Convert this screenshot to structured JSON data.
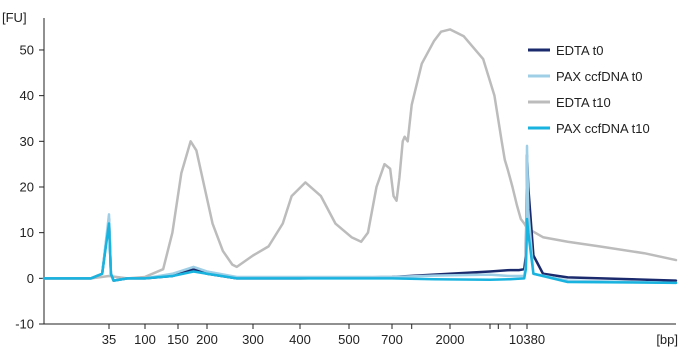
{
  "chart_data": {
    "type": "line",
    "y_unit_label": "[FU]",
    "x_unit_label": "[bp]",
    "ylim": [
      -10,
      57
    ],
    "y_ticks": [
      -10,
      0,
      10,
      20,
      30,
      40,
      50
    ],
    "x_tick_labels": [
      "35",
      "100",
      "150",
      "200",
      "300",
      "400",
      "500",
      "700",
      "2000",
      "10380"
    ],
    "x_tick_label_anchors": [
      {
        "label": "35",
        "bp": 35
      },
      {
        "label": "100",
        "bp": 100
      },
      {
        "label": "150",
        "bp": 150
      },
      {
        "label": "200",
        "bp": 200
      },
      {
        "label": "300",
        "bp": 300
      },
      {
        "label": "400",
        "bp": 400
      },
      {
        "label": "500",
        "bp": 500
      },
      {
        "label": "700",
        "bp": 700
      },
      {
        "label": "2000",
        "bp": 2000
      },
      {
        "label": "10380",
        "bp": 10380
      }
    ],
    "minor_tick_bp": [
      35,
      100,
      150,
      200,
      300,
      400,
      500,
      700,
      1000,
      2000,
      3000,
      4000,
      6000,
      10380
    ],
    "grid": false,
    "legend_position": "top-right",
    "series": [
      {
        "name": "EDTA t0",
        "color": "#1a2a6c",
        "stroke_width": 2.5,
        "points": [
          [
            20,
            0
          ],
          [
            30,
            0
          ],
          [
            33,
            1
          ],
          [
            35,
            13
          ],
          [
            37,
            1
          ],
          [
            40,
            -0.5
          ],
          [
            60,
            0
          ],
          [
            100,
            0
          ],
          [
            140,
            0.5
          ],
          [
            175,
            2
          ],
          [
            200,
            1
          ],
          [
            260,
            0
          ],
          [
            400,
            0
          ],
          [
            700,
            0.3
          ],
          [
            1500,
            0.8
          ],
          [
            3000,
            1.5
          ],
          [
            6000,
            1.8
          ],
          [
            8000,
            1.8
          ],
          [
            9500,
            2
          ],
          [
            10000,
            5
          ],
          [
            10300,
            20
          ],
          [
            10380,
            27
          ],
          [
            10500,
            20
          ],
          [
            11000,
            5
          ],
          [
            12000,
            1
          ],
          [
            15000,
            0.2
          ],
          [
            40000,
            -0.5
          ]
        ]
      },
      {
        "name": "PAX ccfDNA t0",
        "color": "#9ecfe6",
        "stroke_width": 2.5,
        "points": [
          [
            20,
            0
          ],
          [
            30,
            0
          ],
          [
            33,
            1
          ],
          [
            35,
            14
          ],
          [
            37,
            1
          ],
          [
            40,
            -0.5
          ],
          [
            60,
            0
          ],
          [
            100,
            0
          ],
          [
            140,
            1
          ],
          [
            175,
            2.5
          ],
          [
            200,
            1.5
          ],
          [
            260,
            0.3
          ],
          [
            400,
            0.3
          ],
          [
            700,
            0.3
          ],
          [
            1500,
            0.6
          ],
          [
            3000,
            0.8
          ],
          [
            6000,
            0.5
          ],
          [
            9500,
            0.5
          ],
          [
            10000,
            3
          ],
          [
            10300,
            20
          ],
          [
            10380,
            29
          ],
          [
            10500,
            15
          ],
          [
            11000,
            1
          ],
          [
            15000,
            -0.5
          ],
          [
            40000,
            -1
          ]
        ]
      },
      {
        "name": "EDTA t10",
        "color": "#bcbcbc",
        "stroke_width": 2.5,
        "points": [
          [
            20,
            0
          ],
          [
            30,
            0
          ],
          [
            35,
            0.5
          ],
          [
            60,
            0
          ],
          [
            100,
            0.3
          ],
          [
            125,
            2
          ],
          [
            140,
            10
          ],
          [
            155,
            23
          ],
          [
            170,
            30
          ],
          [
            180,
            28
          ],
          [
            195,
            20
          ],
          [
            210,
            12
          ],
          [
            230,
            6
          ],
          [
            250,
            3
          ],
          [
            260,
            2.5
          ],
          [
            300,
            5
          ],
          [
            330,
            7
          ],
          [
            360,
            12
          ],
          [
            380,
            18
          ],
          [
            410,
            21
          ],
          [
            440,
            18
          ],
          [
            470,
            12
          ],
          [
            510,
            9
          ],
          [
            550,
            8
          ],
          [
            580,
            10
          ],
          [
            620,
            20
          ],
          [
            660,
            25
          ],
          [
            690,
            24
          ],
          [
            720,
            18
          ],
          [
            760,
            17
          ],
          [
            800,
            22
          ],
          [
            850,
            30
          ],
          [
            880,
            31
          ],
          [
            930,
            30
          ],
          [
            1000,
            38
          ],
          [
            1200,
            47
          ],
          [
            1500,
            52
          ],
          [
            1700,
            54
          ],
          [
            2000,
            54.5
          ],
          [
            2300,
            53
          ],
          [
            2800,
            48
          ],
          [
            3500,
            40
          ],
          [
            4500,
            30
          ],
          [
            5000,
            26
          ],
          [
            5500,
            24
          ],
          [
            6000,
            22
          ],
          [
            6500,
            20
          ],
          [
            7500,
            16
          ],
          [
            8500,
            13
          ],
          [
            9500,
            12
          ],
          [
            10380,
            11
          ],
          [
            12000,
            9
          ],
          [
            15000,
            8
          ],
          [
            20000,
            7
          ],
          [
            30000,
            5.5
          ],
          [
            40000,
            4
          ]
        ]
      },
      {
        "name": "PAX ccfDNA t10",
        "color": "#19b3df",
        "stroke_width": 2.5,
        "points": [
          [
            20,
            0
          ],
          [
            30,
            0
          ],
          [
            33,
            1
          ],
          [
            35,
            12
          ],
          [
            37,
            1
          ],
          [
            40,
            -0.5
          ],
          [
            60,
            0
          ],
          [
            100,
            0
          ],
          [
            140,
            0.5
          ],
          [
            175,
            1.5
          ],
          [
            200,
            1
          ],
          [
            260,
            0
          ],
          [
            400,
            0
          ],
          [
            700,
            0
          ],
          [
            1500,
            -0.2
          ],
          [
            3000,
            -0.3
          ],
          [
            6000,
            -0.2
          ],
          [
            9500,
            0
          ],
          [
            10000,
            2
          ],
          [
            10300,
            9
          ],
          [
            10380,
            13
          ],
          [
            10500,
            10
          ],
          [
            11000,
            1
          ],
          [
            15000,
            -0.8
          ],
          [
            40000,
            -1
          ]
        ]
      }
    ]
  }
}
